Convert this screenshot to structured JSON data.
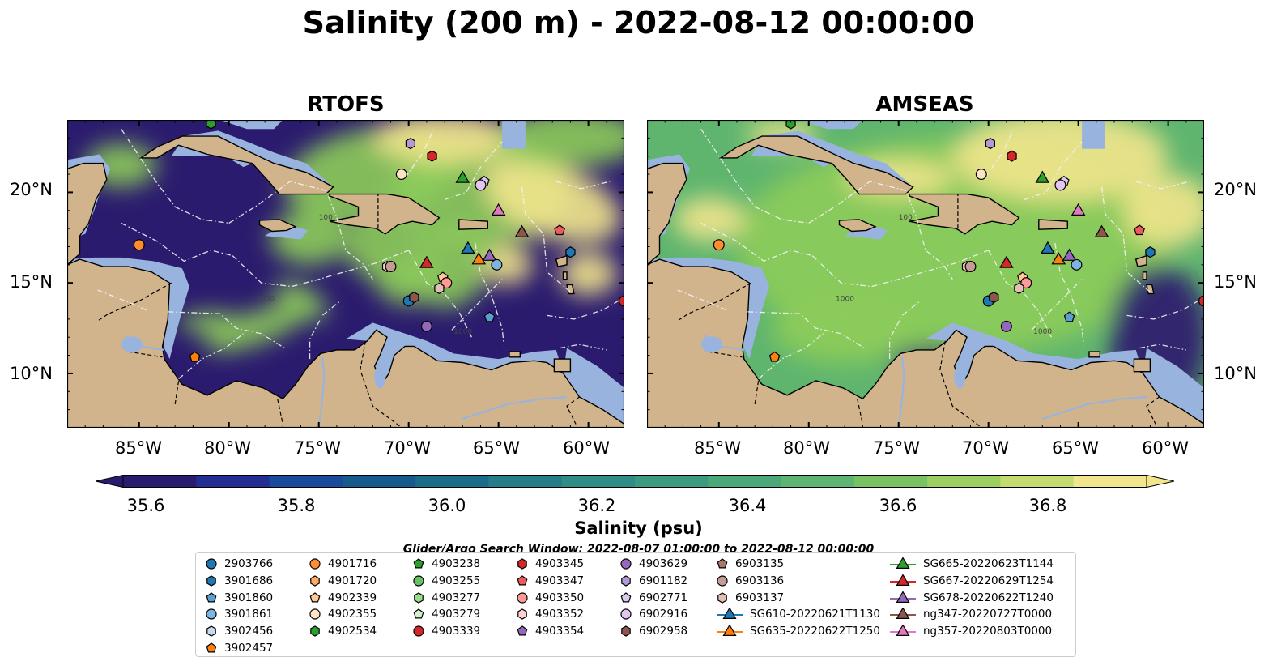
{
  "title": "Salinity (200 m) - 2022-08-12 00:00:00",
  "panels": [
    {
      "name": "RTOFS"
    },
    {
      "name": "AMSEAS"
    }
  ],
  "axes": {
    "longitude_ticks": [
      "85°W",
      "80°W",
      "75°W",
      "70°W",
      "65°W",
      "60°W"
    ],
    "latitude_ticks": [
      "20°N",
      "15°N",
      "10°N"
    ],
    "lon_range": [
      -89,
      -58
    ],
    "lat_range": [
      7,
      24
    ],
    "isobath_labels": [
      "1000",
      "100"
    ]
  },
  "colorbar": {
    "label": "Salinity (psu)",
    "ticks": [
      "35.6",
      "35.8",
      "36.0",
      "36.2",
      "36.4",
      "36.6",
      "36.8"
    ],
    "range": [
      35.5,
      36.9
    ],
    "extend": "both",
    "colors": [
      "#2b1b6e",
      "#232e93",
      "#1a4a9a",
      "#155b8e",
      "#1b6b8b",
      "#257d8a",
      "#2f8d86",
      "#3a9b80",
      "#4aa87a",
      "#5cb571",
      "#78c263",
      "#9ccf5f",
      "#c4dc6f",
      "#f2e68c"
    ]
  },
  "map_colors": {
    "land": "#d2b48c",
    "shelf": "#98b4de",
    "fresh": "#2b1b6e",
    "salty": "#8dcc5a",
    "high": "#f2e68c"
  },
  "search_window": "Glider/Argo Search Window: 2022-08-07 01:00:00 to 2022-08-12 00:00:00",
  "legend": [
    {
      "label": "2903766",
      "marker": "circle",
      "color": "#1f77b4"
    },
    {
      "label": "3901686",
      "marker": "hexagon",
      "color": "#1f77b4"
    },
    {
      "label": "3901860",
      "marker": "pentagon",
      "color": "#5a9fd0"
    },
    {
      "label": "3901861",
      "marker": "circle",
      "color": "#7fb3e0"
    },
    {
      "label": "3902456",
      "marker": "hexagon",
      "color": "#c6dbef"
    },
    {
      "label": "3902457",
      "marker": "pentagon",
      "color": "#ff7f0e"
    },
    {
      "label": "4901716",
      "marker": "circle",
      "color": "#ff8c2e"
    },
    {
      "label": "4901720",
      "marker": "hexagon",
      "color": "#ffab63"
    },
    {
      "label": "4902339",
      "marker": "pentagon",
      "color": "#ffc894"
    },
    {
      "label": "4902355",
      "marker": "circle",
      "color": "#ffe4c4"
    },
    {
      "label": "4902534",
      "marker": "hexagon",
      "color": "#2ca02c"
    },
    {
      "label": "4903238",
      "marker": "pentagon",
      "color": "#2ca02c"
    },
    {
      "label": "4903255",
      "marker": "circle",
      "color": "#66c266"
    },
    {
      "label": "4903277",
      "marker": "hexagon",
      "color": "#98df8a"
    },
    {
      "label": "4903279",
      "marker": "pentagon",
      "color": "#d3f2cc"
    },
    {
      "label": "4903339",
      "marker": "circle",
      "color": "#d62728"
    },
    {
      "label": "4903345",
      "marker": "hexagon",
      "color": "#d62728"
    },
    {
      "label": "4903347",
      "marker": "pentagon",
      "color": "#ef5b5c"
    },
    {
      "label": "4903350",
      "marker": "circle",
      "color": "#ff9896"
    },
    {
      "label": "4903352",
      "marker": "hexagon",
      "color": "#ffd1d0"
    },
    {
      "label": "4903354",
      "marker": "pentagon",
      "color": "#9467bd"
    },
    {
      "label": "4903629",
      "marker": "circle",
      "color": "#9467bd"
    },
    {
      "label": "6901182",
      "marker": "hexagon",
      "color": "#b39ad6"
    },
    {
      "label": "6902771",
      "marker": "pentagon",
      "color": "#dccaf0"
    },
    {
      "label": "6902916",
      "marker": "circle",
      "color": "#e3c5f2"
    },
    {
      "label": "6902958",
      "marker": "hexagon",
      "color": "#8c564b"
    },
    {
      "label": "6903135",
      "marker": "pentagon",
      "color": "#a8786c"
    },
    {
      "label": "6903136",
      "marker": "circle",
      "color": "#c49c94"
    },
    {
      "label": "6903137",
      "marker": "hexagon",
      "color": "#e5bfb3"
    },
    {
      "label": "SG610-20220621T1130",
      "marker": "triangle-line",
      "color": "#1f77b4"
    },
    {
      "label": "SG635-20220622T1250",
      "marker": "triangle-line",
      "color": "#ff7f0e"
    },
    {
      "label": "SG665-20220623T1144",
      "marker": "triangle-line",
      "color": "#2ca02c"
    },
    {
      "label": "SG667-20220629T1254",
      "marker": "triangle-line",
      "color": "#d62728"
    },
    {
      "label": "SG678-20220622T1240",
      "marker": "triangle-line",
      "color": "#9467bd"
    },
    {
      "label": "ng347-20220727T0000",
      "marker": "triangle-line",
      "color": "#8c564b"
    },
    {
      "label": "ng357-20220803T0000",
      "marker": "triangle-line",
      "color": "#e377c2"
    }
  ],
  "observations": [
    {
      "id": "4901716",
      "lon": -85.0,
      "lat": 17.1
    },
    {
      "id": "3902457",
      "lon": -81.9,
      "lat": 10.9
    },
    {
      "id": "4902534",
      "lon": -81.0,
      "lat": 23.8
    },
    {
      "id": "6901182",
      "lon": -69.9,
      "lat": 22.7
    },
    {
      "id": "4903345",
      "lon": -68.7,
      "lat": 22.0
    },
    {
      "id": "4902355",
      "lon": -70.4,
      "lat": 21.0
    },
    {
      "id": "SG665-20220623T1144",
      "lon": -67.0,
      "lat": 20.8
    },
    {
      "id": "6902771",
      "lon": -65.8,
      "lat": 20.6
    },
    {
      "id": "6902916",
      "lon": -66.0,
      "lat": 20.4
    },
    {
      "id": "ng357-20220803T0000",
      "lon": -65.0,
      "lat": 19.0
    },
    {
      "id": "ng347-20220727T0000",
      "lon": -63.7,
      "lat": 17.8
    },
    {
      "id": "4903347",
      "lon": -61.6,
      "lat": 17.9
    },
    {
      "id": "3901686",
      "lon": -61.0,
      "lat": 16.7
    },
    {
      "id": "SG610-20220621T1130",
      "lon": -66.7,
      "lat": 16.9
    },
    {
      "id": "SG678-20220622T1240",
      "lon": -65.5,
      "lat": 16.5
    },
    {
      "id": "SG635-20220622T1250",
      "lon": -66.1,
      "lat": 16.3
    },
    {
      "id": "3901861",
      "lon": -65.1,
      "lat": 16.0
    },
    {
      "id": "SG667-20220629T1254",
      "lon": -69.0,
      "lat": 16.1
    },
    {
      "id": "4903352",
      "lon": -71.2,
      "lat": 15.9
    },
    {
      "id": "6903136",
      "lon": -71.0,
      "lat": 15.9
    },
    {
      "id": "4902339",
      "lon": -68.1,
      "lat": 15.3
    },
    {
      "id": "4903350",
      "lon": -67.9,
      "lat": 15.0
    },
    {
      "id": "6903137",
      "lon": -68.3,
      "lat": 14.7
    },
    {
      "id": "2903766",
      "lon": -70.0,
      "lat": 14.0
    },
    {
      "id": "6902958",
      "lon": -69.7,
      "lat": 14.2
    },
    {
      "id": "3901860",
      "lon": -65.5,
      "lat": 13.1
    },
    {
      "id": "4903629",
      "lon": -69.0,
      "lat": 12.6
    },
    {
      "id": "4903339",
      "lon": -58.0,
      "lat": 14.0
    }
  ]
}
